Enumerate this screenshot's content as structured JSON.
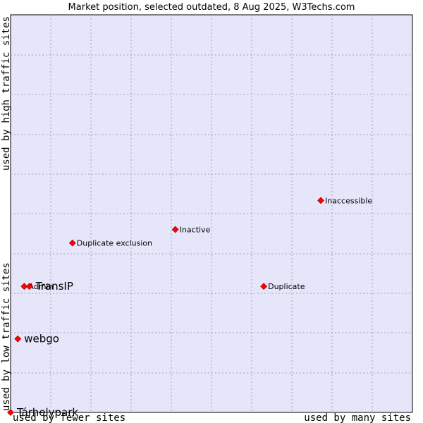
{
  "chart_data": {
    "type": "scatter",
    "title": "Market position, selected outdated, 8 Aug 2025, W3Techs.com",
    "xlabel_low": "used by fewer sites",
    "xlabel_high": "used by many sites",
    "ylabel_low": "used by low traffic sites",
    "ylabel_high": "used by high traffic sites",
    "xlim": [
      0,
      1
    ],
    "ylim": [
      0,
      1
    ],
    "grid": true,
    "marker_color": "#ff0000",
    "background_color": "#e6e6fa",
    "points": [
      {
        "label": "Inaccessible",
        "x": 0.772,
        "y": 0.533,
        "size": "small"
      },
      {
        "label": "Inactive",
        "x": 0.41,
        "y": 0.46,
        "size": "small"
      },
      {
        "label": "Duplicate exclusion",
        "x": 0.154,
        "y": 0.426,
        "size": "small"
      },
      {
        "label": "Duplicate",
        "x": 0.63,
        "y": 0.317,
        "size": "small"
      },
      {
        "label": "Admin",
        "x": 0.034,
        "y": 0.317,
        "size": "small"
      },
      {
        "label": "TransIP",
        "x": 0.047,
        "y": 0.317,
        "size": "large"
      },
      {
        "label": "webgo",
        "x": 0.018,
        "y": 0.185,
        "size": "large"
      },
      {
        "label": "Tárhelypark",
        "x": 0.0,
        "y": 0.0,
        "size": "large"
      }
    ]
  }
}
